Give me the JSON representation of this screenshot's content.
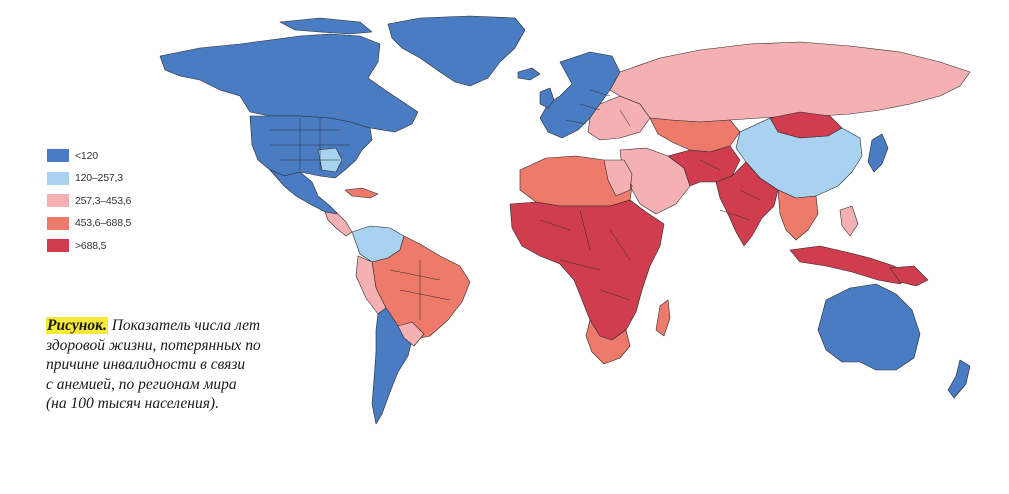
{
  "legend": {
    "items": [
      {
        "label": "<120",
        "color": "#4a7cc4"
      },
      {
        "label": "120–257,3",
        "color": "#a8d2f0"
      },
      {
        "label": "257,3–453,6",
        "color": "#f4b0b2"
      },
      {
        "label": "453,6–688,5",
        "color": "#ee7a6c"
      },
      {
        "label": ">688,5",
        "color": "#cf3d4f"
      }
    ]
  },
  "caption": {
    "label": "Рисунок.",
    "lines": [
      "Показатель числа лет",
      "здоровой жизни, потерянных по",
      "причине инвалидности в связи",
      "с анемией, по регионам мира",
      "(на 100 тысяч населения)."
    ]
  }
}
